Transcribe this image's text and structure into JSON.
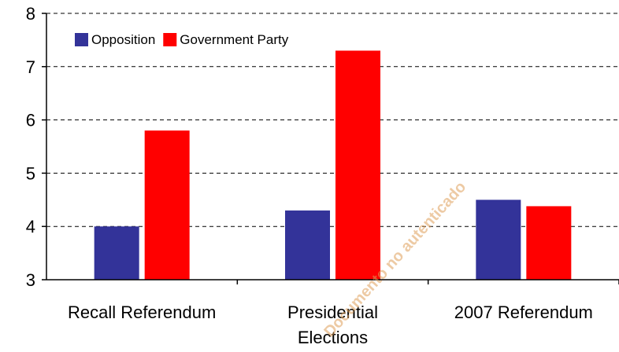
{
  "chart_data": {
    "type": "bar",
    "categories": [
      [
        "Recall Referendum"
      ],
      [
        "Presidential",
        "Elections"
      ],
      [
        "2007 Referendum"
      ]
    ],
    "series": [
      {
        "name": "Opposition",
        "color": "#333399",
        "values": [
          4.0,
          4.3,
          4.5
        ]
      },
      {
        "name": "Government Party",
        "color": "#ff0000",
        "values": [
          5.8,
          7.3,
          4.38
        ]
      }
    ],
    "title": "",
    "xlabel": "",
    "ylabel": "",
    "ylim": [
      3,
      8
    ],
    "yticks": [
      "3",
      "4",
      "5",
      "6",
      "7",
      "8"
    ],
    "grid": "dashed horizontal",
    "legend_position": "top-left"
  },
  "watermark": "Documento no autenticado"
}
